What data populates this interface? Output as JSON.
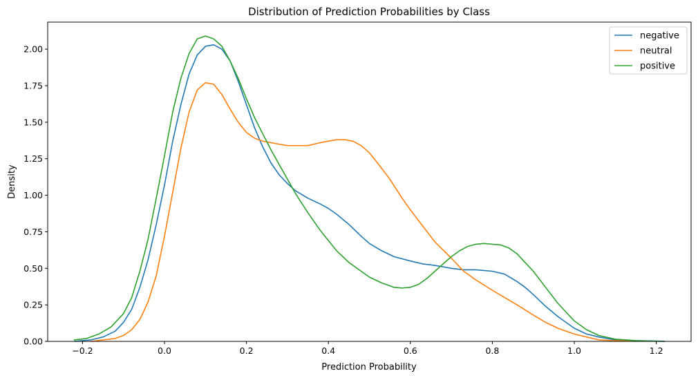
{
  "chart_data": {
    "type": "line",
    "title": "Distribution of Prediction Probabilities by Class",
    "xlabel": "Prediction Probability",
    "ylabel": "Density",
    "xlim": [
      -0.285,
      1.285
    ],
    "ylim": [
      0,
      2.185
    ],
    "xticks": [
      -0.2,
      0.0,
      0.2,
      0.4,
      0.6,
      0.8,
      1.0,
      1.2
    ],
    "xtick_labels": [
      "−0.2",
      "0.0",
      "0.2",
      "0.4",
      "0.6",
      "0.8",
      "1.0",
      "1.2"
    ],
    "yticks": [
      0.0,
      0.25,
      0.5,
      0.75,
      1.0,
      1.25,
      1.5,
      1.75,
      2.0
    ],
    "ytick_labels": [
      "0.00",
      "0.25",
      "0.50",
      "0.75",
      "1.00",
      "1.25",
      "1.50",
      "1.75",
      "2.00"
    ],
    "grid": false,
    "legend_position": "top-right",
    "series": [
      {
        "name": "negative",
        "color": "#1f77b4",
        "x": [
          -0.22,
          -0.18,
          -0.15,
          -0.12,
          -0.1,
          -0.08,
          -0.06,
          -0.04,
          -0.02,
          0.0,
          0.02,
          0.04,
          0.06,
          0.08,
          0.1,
          0.12,
          0.14,
          0.16,
          0.18,
          0.2,
          0.22,
          0.24,
          0.26,
          0.28,
          0.3,
          0.32,
          0.35,
          0.38,
          0.4,
          0.42,
          0.45,
          0.48,
          0.5,
          0.53,
          0.56,
          0.6,
          0.63,
          0.66,
          0.7,
          0.73,
          0.76,
          0.8,
          0.83,
          0.86,
          0.88,
          0.9,
          0.93,
          0.96,
          1.0,
          1.03,
          1.06,
          1.1,
          1.15,
          1.2,
          1.22
        ],
        "y": [
          0.0,
          0.01,
          0.03,
          0.07,
          0.13,
          0.22,
          0.37,
          0.56,
          0.8,
          1.07,
          1.37,
          1.62,
          1.83,
          1.96,
          2.02,
          2.03,
          2.0,
          1.92,
          1.78,
          1.62,
          1.46,
          1.33,
          1.22,
          1.14,
          1.08,
          1.03,
          0.98,
          0.94,
          0.91,
          0.87,
          0.8,
          0.72,
          0.67,
          0.62,
          0.58,
          0.55,
          0.53,
          0.52,
          0.5,
          0.49,
          0.49,
          0.48,
          0.46,
          0.41,
          0.37,
          0.32,
          0.24,
          0.17,
          0.09,
          0.05,
          0.03,
          0.01,
          0.005,
          0.002,
          0.001
        ]
      },
      {
        "name": "neutral",
        "color": "#ff7f0e",
        "x": [
          -0.18,
          -0.15,
          -0.12,
          -0.1,
          -0.08,
          -0.06,
          -0.04,
          -0.02,
          0.0,
          0.02,
          0.04,
          0.06,
          0.08,
          0.1,
          0.12,
          0.14,
          0.16,
          0.18,
          0.2,
          0.22,
          0.24,
          0.26,
          0.28,
          0.3,
          0.32,
          0.35,
          0.38,
          0.4,
          0.42,
          0.44,
          0.46,
          0.48,
          0.5,
          0.52,
          0.55,
          0.58,
          0.6,
          0.63,
          0.66,
          0.7,
          0.73,
          0.76,
          0.8,
          0.83,
          0.86,
          0.9,
          0.93,
          0.96,
          1.0,
          1.03,
          1.06,
          1.1,
          1.15
        ],
        "y": [
          0.0,
          0.01,
          0.02,
          0.04,
          0.08,
          0.15,
          0.27,
          0.45,
          0.72,
          1.02,
          1.32,
          1.57,
          1.72,
          1.77,
          1.76,
          1.69,
          1.59,
          1.5,
          1.43,
          1.39,
          1.37,
          1.36,
          1.35,
          1.34,
          1.34,
          1.34,
          1.36,
          1.37,
          1.38,
          1.38,
          1.37,
          1.34,
          1.29,
          1.22,
          1.11,
          0.98,
          0.9,
          0.79,
          0.68,
          0.57,
          0.48,
          0.42,
          0.35,
          0.3,
          0.25,
          0.18,
          0.13,
          0.09,
          0.05,
          0.03,
          0.01,
          0.005,
          0.001
        ]
      },
      {
        "name": "positive",
        "color": "#2ca02c",
        "x": [
          -0.22,
          -0.19,
          -0.16,
          -0.13,
          -0.1,
          -0.08,
          -0.06,
          -0.04,
          -0.02,
          0.0,
          0.02,
          0.04,
          0.06,
          0.08,
          0.1,
          0.12,
          0.14,
          0.16,
          0.18,
          0.2,
          0.22,
          0.24,
          0.26,
          0.28,
          0.3,
          0.32,
          0.35,
          0.38,
          0.4,
          0.42,
          0.45,
          0.48,
          0.5,
          0.53,
          0.56,
          0.58,
          0.6,
          0.62,
          0.64,
          0.66,
          0.68,
          0.7,
          0.72,
          0.74,
          0.76,
          0.78,
          0.8,
          0.82,
          0.84,
          0.86,
          0.88,
          0.9,
          0.93,
          0.96,
          1.0,
          1.03,
          1.06,
          1.1,
          1.15,
          1.2,
          1.22
        ],
        "y": [
          0.01,
          0.02,
          0.05,
          0.1,
          0.19,
          0.3,
          0.48,
          0.7,
          0.98,
          1.27,
          1.57,
          1.8,
          1.97,
          2.07,
          2.09,
          2.07,
          2.02,
          1.92,
          1.8,
          1.66,
          1.53,
          1.42,
          1.31,
          1.21,
          1.11,
          1.01,
          0.88,
          0.76,
          0.69,
          0.62,
          0.54,
          0.48,
          0.44,
          0.4,
          0.37,
          0.365,
          0.37,
          0.39,
          0.43,
          0.48,
          0.53,
          0.58,
          0.62,
          0.65,
          0.665,
          0.67,
          0.665,
          0.66,
          0.64,
          0.6,
          0.54,
          0.48,
          0.37,
          0.26,
          0.14,
          0.08,
          0.04,
          0.015,
          0.005,
          0.001,
          0.0
        ]
      }
    ]
  }
}
